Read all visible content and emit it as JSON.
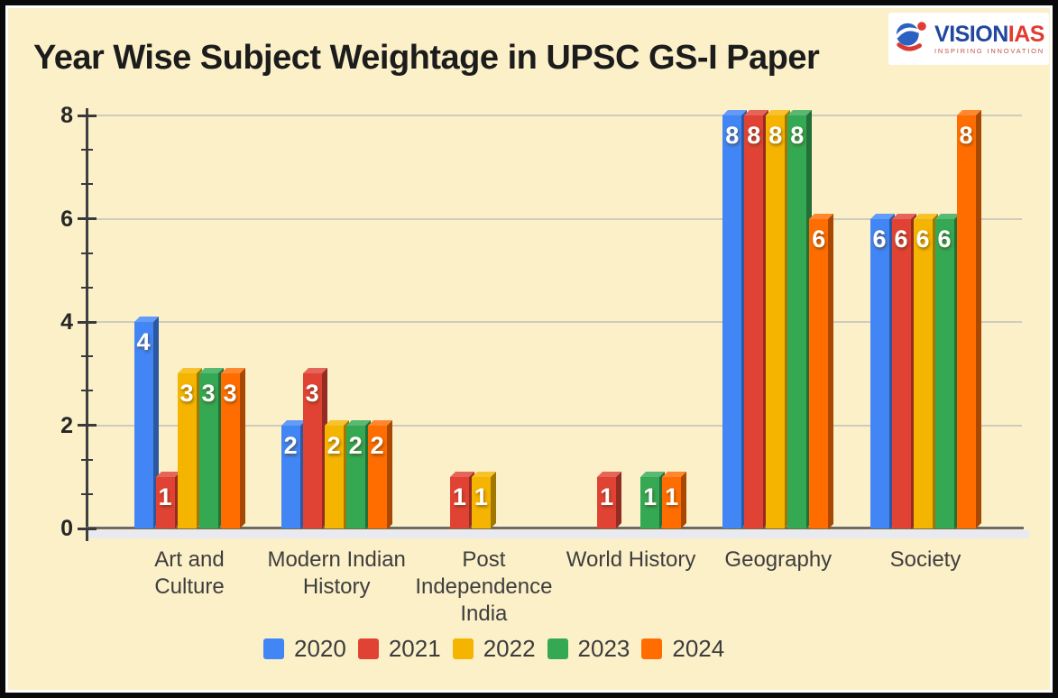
{
  "title": "Year Wise Subject Weightage in UPSC GS-I  Paper",
  "logo": {
    "brand_primary": "VISION",
    "brand_secondary": "IAS",
    "tagline": "INSPIRING  INNOVATION",
    "brand_primary_color": "#21489E",
    "brand_secondary_color": "#E23B33",
    "tagline_color": "#C4504A"
  },
  "chart_data": {
    "type": "bar",
    "title": "Year Wise Subject Weightage in UPSC GS-I  Paper",
    "categories": [
      "Art and Culture",
      "Modern Indian History",
      "Post Independence India",
      "World History",
      "Geography",
      "Society"
    ],
    "category_display": [
      "Art and\nCulture",
      "Modern Indian\nHistory",
      "Post\nIndependence\nIndia",
      "World History",
      "Geography",
      "Society"
    ],
    "series": [
      {
        "name": "2020",
        "color": "#4285F4",
        "values": [
          4,
          2,
          0,
          0,
          8,
          6
        ]
      },
      {
        "name": "2021",
        "color": "#E04334",
        "values": [
          1,
          3,
          1,
          1,
          8,
          6
        ]
      },
      {
        "name": "2022",
        "color": "#F5B400",
        "values": [
          3,
          2,
          1,
          0,
          8,
          6
        ]
      },
      {
        "name": "2023",
        "color": "#34A853",
        "values": [
          3,
          2,
          0,
          1,
          8,
          6
        ]
      },
      {
        "name": "2024",
        "color": "#FF6D01",
        "values": [
          3,
          2,
          0,
          1,
          6,
          8
        ]
      }
    ],
    "xlabel": "",
    "ylabel": "",
    "ylim": [
      0,
      8
    ],
    "yticks": [
      0,
      2,
      4,
      6,
      8
    ],
    "minor_ticks_per_major": 2,
    "grid": true,
    "bar_value_labels_shown": true,
    "legend_position": "bottom",
    "style": "3d-bars"
  },
  "colors": {
    "background": "#FBF0C8",
    "frame": "#0A0A0A",
    "grid": "#CFCBBD",
    "axis": "#3F3F3F",
    "baseline": "#6B6B6B",
    "floor": "#E9E9F1",
    "axis_text": "#272727",
    "category_text": "#3E3E3E",
    "value_label_text": "#FFFFFF"
  }
}
